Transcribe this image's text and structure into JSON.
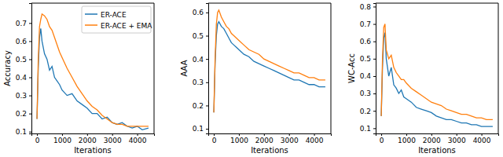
{
  "chart_data": [
    {
      "type": "line",
      "xlabel": "Iterations",
      "ylabel": "Accuracy",
      "legend": "upper right",
      "x": [
        0,
        50,
        100,
        150,
        200,
        300,
        400,
        500,
        600,
        700,
        800,
        900,
        1000,
        1200,
        1400,
        1600,
        1800,
        2000,
        2200,
        2400,
        2600,
        2800,
        3000,
        3200,
        3400,
        3600,
        3800,
        4000,
        4200,
        4450
      ],
      "series": [
        {
          "name": "ER-ACE",
          "color": "#1f77b4",
          "values": [
            0.17,
            0.45,
            0.62,
            0.67,
            0.6,
            0.53,
            0.5,
            0.44,
            0.46,
            0.4,
            0.38,
            0.36,
            0.33,
            0.3,
            0.31,
            0.27,
            0.25,
            0.23,
            0.2,
            0.2,
            0.17,
            0.18,
            0.15,
            0.14,
            0.15,
            0.13,
            0.12,
            0.13,
            0.11,
            0.12
          ]
        },
        {
          "name": "ER-ACE + EMA",
          "color": "#ff7f0e",
          "values": [
            0.17,
            0.5,
            0.68,
            0.72,
            0.75,
            0.74,
            0.72,
            0.68,
            0.66,
            0.62,
            0.58,
            0.54,
            0.51,
            0.45,
            0.4,
            0.35,
            0.31,
            0.27,
            0.24,
            0.22,
            0.19,
            0.17,
            0.15,
            0.14,
            0.14,
            0.13,
            0.13,
            0.13,
            0.13,
            0.13
          ]
        }
      ],
      "xlim": [
        -222,
        4672
      ],
      "ylim": [
        0.09,
        0.81
      ],
      "xticks": [
        0,
        1000,
        2000,
        3000,
        4000
      ],
      "yticks": [
        0.1,
        0.2,
        0.3,
        0.4,
        0.5,
        0.6,
        0.7
      ]
    },
    {
      "type": "line",
      "xlabel": "Iterations",
      "ylabel": "AAA",
      "x": [
        0,
        50,
        100,
        150,
        200,
        300,
        400,
        500,
        600,
        700,
        800,
        900,
        1000,
        1200,
        1400,
        1600,
        1800,
        2000,
        2200,
        2400,
        2600,
        2800,
        3000,
        3200,
        3400,
        3600,
        3800,
        4000,
        4200,
        4450
      ],
      "series": [
        {
          "name": "ER-ACE",
          "color": "#1f77b4",
          "values": [
            0.17,
            0.38,
            0.5,
            0.55,
            0.56,
            0.54,
            0.53,
            0.51,
            0.49,
            0.47,
            0.46,
            0.45,
            0.44,
            0.42,
            0.41,
            0.39,
            0.38,
            0.37,
            0.36,
            0.35,
            0.34,
            0.33,
            0.32,
            0.31,
            0.31,
            0.3,
            0.29,
            0.29,
            0.28,
            0.28
          ]
        },
        {
          "name": "ER-ACE + EMA",
          "color": "#ff7f0e",
          "values": [
            0.17,
            0.4,
            0.55,
            0.6,
            0.61,
            0.58,
            0.56,
            0.54,
            0.53,
            0.51,
            0.5,
            0.49,
            0.48,
            0.46,
            0.44,
            0.43,
            0.42,
            0.4,
            0.39,
            0.38,
            0.37,
            0.36,
            0.35,
            0.34,
            0.34,
            0.33,
            0.32,
            0.32,
            0.31,
            0.31
          ]
        }
      ],
      "xlim": [
        -222,
        4672
      ],
      "ylim": [
        0.08,
        0.64
      ],
      "xticks": [
        0,
        1000,
        2000,
        3000,
        4000
      ],
      "yticks": [
        0.1,
        0.2,
        0.3,
        0.4,
        0.5,
        0.6
      ]
    },
    {
      "type": "line",
      "xlabel": "Iterations",
      "ylabel": "WC-Acc",
      "x": [
        0,
        50,
        100,
        150,
        200,
        300,
        400,
        500,
        600,
        700,
        800,
        900,
        1000,
        1200,
        1400,
        1600,
        1800,
        2000,
        2200,
        2400,
        2600,
        2800,
        3000,
        3200,
        3400,
        3600,
        3800,
        4000,
        4200,
        4450
      ],
      "series": [
        {
          "name": "ER-ACE",
          "color": "#1f77b4",
          "values": [
            0.17,
            0.45,
            0.62,
            0.65,
            0.5,
            0.4,
            0.45,
            0.35,
            0.33,
            0.3,
            0.32,
            0.28,
            0.27,
            0.25,
            0.22,
            0.21,
            0.2,
            0.19,
            0.17,
            0.16,
            0.15,
            0.15,
            0.14,
            0.13,
            0.13,
            0.12,
            0.12,
            0.11,
            0.11,
            0.11
          ]
        },
        {
          "name": "ER-ACE + EMA",
          "color": "#ff7f0e",
          "values": [
            0.17,
            0.5,
            0.68,
            0.7,
            0.55,
            0.5,
            0.52,
            0.45,
            0.42,
            0.4,
            0.38,
            0.38,
            0.36,
            0.33,
            0.31,
            0.29,
            0.27,
            0.25,
            0.24,
            0.23,
            0.21,
            0.2,
            0.19,
            0.18,
            0.18,
            0.17,
            0.16,
            0.16,
            0.15,
            0.15
          ]
        }
      ],
      "xlim": [
        -222,
        4672
      ],
      "ylim": [
        0.07,
        0.82
      ],
      "xticks": [
        0,
        1000,
        2000,
        3000,
        4000
      ],
      "yticks": [
        0.1,
        0.2,
        0.3,
        0.4,
        0.5,
        0.6,
        0.7,
        0.8
      ]
    }
  ]
}
